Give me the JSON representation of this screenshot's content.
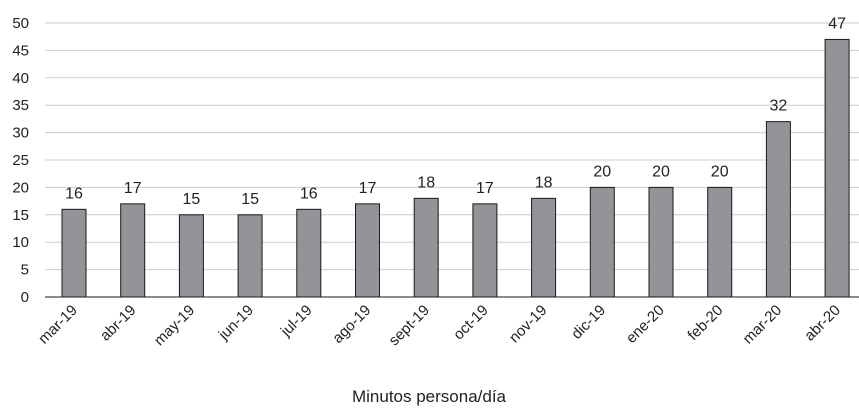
{
  "chart_data": {
    "type": "bar",
    "categories": [
      "mar-19",
      "abr-19",
      "may-19",
      "jun-19",
      "jul-19",
      "ago-19",
      "sept-19",
      "oct-19",
      "nov-19",
      "dic-19",
      "ene-20",
      "feb-20",
      "mar-20",
      "abr-20"
    ],
    "values": [
      16,
      17,
      15,
      15,
      16,
      17,
      18,
      17,
      18,
      20,
      20,
      20,
      32,
      47
    ],
    "title": "",
    "xlabel": "Minutos persona/día",
    "ylabel": "",
    "ylim": [
      0,
      50
    ],
    "yticks": [
      0,
      5,
      10,
      15,
      20,
      25,
      30,
      35,
      40,
      45,
      50
    ],
    "grid": true,
    "legend": "none",
    "bar_color": "#939398",
    "bar_edge_color": "#1a1a1a",
    "grid_color": "#cccccc"
  }
}
